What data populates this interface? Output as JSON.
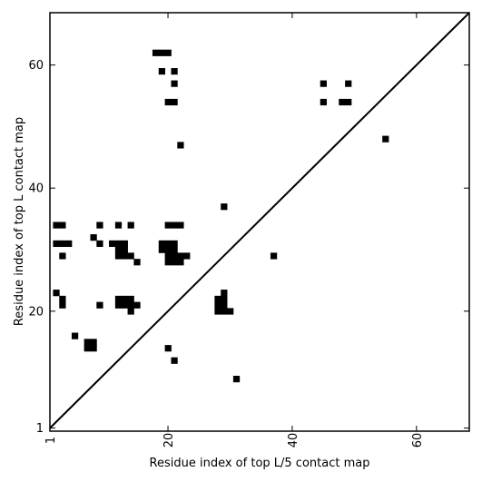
{
  "chart_data": {
    "type": "heatmap",
    "xlabel": "Residue index of top L/5 contact map",
    "ylabel": "Residue index of top L contact map",
    "xlim": [
      1,
      68.5
    ],
    "ylim": [
      0.5,
      68.5
    ],
    "x_ticks": [
      1,
      20,
      40,
      60
    ],
    "x_tick_labels": [
      "1",
      "20",
      "40",
      "60"
    ],
    "y_ticks": [
      1,
      20,
      40,
      60
    ],
    "y_tick_labels": [
      "1",
      "20",
      "40",
      "60"
    ],
    "diagonal": true,
    "grid": false,
    "cells": [
      [
        18,
        62
      ],
      [
        19,
        62
      ],
      [
        20,
        62
      ],
      [
        19,
        59
      ],
      [
        21,
        59
      ],
      [
        21,
        57
      ],
      [
        45,
        57
      ],
      [
        49,
        57
      ],
      [
        20,
        54
      ],
      [
        21,
        54
      ],
      [
        45,
        54
      ],
      [
        48,
        54
      ],
      [
        49,
        54
      ],
      [
        22,
        47
      ],
      [
        55,
        48
      ],
      [
        29,
        37
      ],
      [
        2,
        34
      ],
      [
        3,
        34
      ],
      [
        9,
        34
      ],
      [
        12,
        34
      ],
      [
        14,
        34
      ],
      [
        20,
        34
      ],
      [
        21,
        34
      ],
      [
        22,
        34
      ],
      [
        8,
        32
      ],
      [
        2,
        31
      ],
      [
        3,
        31
      ],
      [
        4,
        31
      ],
      [
        9,
        31
      ],
      [
        11,
        31
      ],
      [
        12,
        31
      ],
      [
        13,
        31
      ],
      [
        19,
        31
      ],
      [
        20,
        31
      ],
      [
        21,
        31
      ],
      [
        12,
        30
      ],
      [
        13,
        30
      ],
      [
        19,
        30
      ],
      [
        20,
        30
      ],
      [
        21,
        30
      ],
      [
        3,
        29
      ],
      [
        12,
        29
      ],
      [
        13,
        29
      ],
      [
        14,
        29
      ],
      [
        20,
        29
      ],
      [
        21,
        29
      ],
      [
        22,
        29
      ],
      [
        23,
        29
      ],
      [
        37,
        29
      ],
      [
        15,
        28
      ],
      [
        20,
        28
      ],
      [
        21,
        28
      ],
      [
        22,
        28
      ],
      [
        2,
        23
      ],
      [
        29,
        23
      ],
      [
        3,
        22
      ],
      [
        12,
        22
      ],
      [
        13,
        22
      ],
      [
        14,
        22
      ],
      [
        28,
        22
      ],
      [
        29,
        22
      ],
      [
        3,
        21
      ],
      [
        9,
        21
      ],
      [
        12,
        21
      ],
      [
        13,
        21
      ],
      [
        14,
        21
      ],
      [
        15,
        21
      ],
      [
        28,
        21
      ],
      [
        29,
        21
      ],
      [
        14,
        20
      ],
      [
        28,
        20
      ],
      [
        29,
        20
      ],
      [
        30,
        20
      ],
      [
        5,
        16
      ],
      [
        7,
        15
      ],
      [
        8,
        15
      ],
      [
        7,
        14
      ],
      [
        8,
        14
      ],
      [
        20,
        14
      ],
      [
        21,
        12
      ],
      [
        31,
        9
      ]
    ]
  }
}
